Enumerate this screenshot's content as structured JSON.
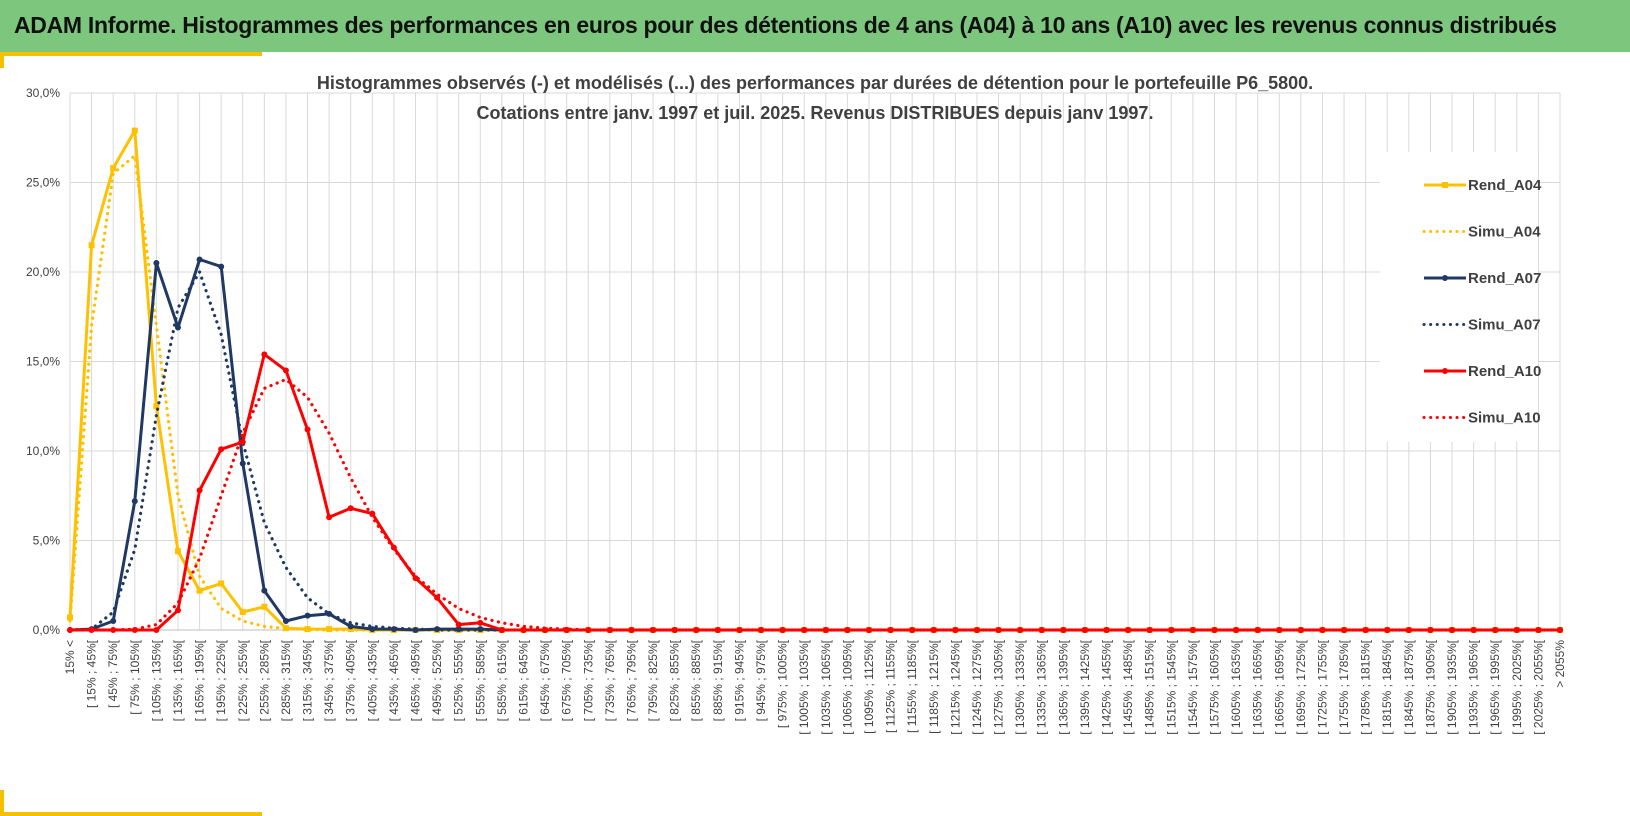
{
  "header": {
    "title": "ADAM Informe. Histogrammes des performances en euros pour des détentions de 4 ans (A04) à 10 ans (A10) avec les revenus connus distribués"
  },
  "colors": {
    "header_bg": "#7dc67e",
    "accent": "#f5c000",
    "yellow": "#ffc000",
    "navy": "#203864",
    "red": "#ff0000"
  },
  "chart_data": {
    "type": "line",
    "title": "Histogrammes observés (-) et modélisés (...) des performances par durées de détention pour le portefeuille P6_5800.",
    "subtitle": "Cotations entre janv. 1997 et juil. 2025. Revenus DISTRIBUES depuis janv 1997.",
    "ylim": [
      0,
      30
    ],
    "y_ticks": [
      "0,0%",
      "5,0%",
      "10,0%",
      "15,0%",
      "20,0%",
      "25,0%",
      "30,0%"
    ],
    "grid": true,
    "legend_position": "right",
    "categories": [
      "15% <",
      "[ 15% ; 45%[",
      "[ 45% ; 75%[",
      "[ 75% ; 105%[",
      "[ 105% ; 135%[",
      "[ 135% ; 165%[",
      "[ 165% ; 195%[",
      "[ 195% ; 225%[",
      "[ 225% ; 255%[",
      "[ 255% ; 285%[",
      "[ 285% ; 315%[",
      "[ 315% ; 345%[",
      "[ 345% ; 375%[",
      "[ 375% ; 405%[",
      "[ 405% ; 435%[",
      "[ 435% ; 465%[",
      "[ 465% ; 495%[",
      "[ 495% ; 525%[",
      "[ 525% ; 555%[",
      "[ 555% ; 585%[",
      "[ 585% ; 615%[",
      "[ 615% ; 645%[",
      "[ 645% ; 675%[",
      "[ 675% ; 705%[",
      "[ 705% ; 735%[",
      "[ 735% ; 765%[",
      "[ 765% ; 795%[",
      "[ 795% ; 825%[",
      "[ 825% ; 855%[",
      "[ 855% ; 885%[",
      "[ 885% ; 915%[",
      "[ 915% ; 945%[",
      "[ 945% ; 975%[",
      "[ 975% ; 1005%[",
      "[ 1005% ; 1035%[",
      "[ 1035% ; 1065%[",
      "[ 1065% ; 1095%[",
      "[ 1095% ; 1125%[",
      "[ 1125% ; 1155%[",
      "[ 1155% ; 1185%[",
      "[ 1185% ; 1215%[",
      "[ 1215% ; 1245%[",
      "[ 1245% ; 1275%[",
      "[ 1275% ; 1305%[",
      "[ 1305% ; 1335%[",
      "[ 1335% ; 1365%[",
      "[ 1365% ; 1395%[",
      "[ 1395% ; 1425%[",
      "[ 1425% ; 1455%[",
      "[ 1455% ; 1485%[",
      "[ 1485% ; 1515%[",
      "[ 1515% ; 1545%[",
      "[ 1545% ; 1575%[",
      "[ 1575% ; 1605%[",
      "[ 1605% ; 1635%[",
      "[ 1635% ; 1665%[",
      "[ 1665% ; 1695%[",
      "[ 1695% ; 1725%[",
      "[ 1725% ; 1755%[",
      "[ 1755% ; 1785%[",
      "[ 1785% ; 1815%[",
      "[ 1815% ; 1845%[",
      "[ 1845% ; 1875%[",
      "[ 1875% ; 1905%[",
      "[ 1905% ; 1935%[",
      "[ 1935% ; 1965%[",
      "[ 1965% ; 1995%[",
      "[ 1995% ; 2025%[",
      "[ 2025% ; 2055%[",
      "> 2055%"
    ],
    "series": [
      {
        "name": "Rend_A04",
        "color": "#ffc000",
        "style": "solid",
        "values": [
          0.7,
          21.5,
          25.8,
          27.9,
          12.5,
          4.4,
          2.2,
          2.6,
          1.0,
          1.3,
          0.1,
          0.05,
          0.05,
          0.05,
          0,
          0,
          0,
          0,
          0,
          0,
          0,
          0,
          0,
          0,
          0,
          0,
          0,
          0,
          0,
          0,
          0,
          0,
          0,
          0,
          0,
          0,
          0,
          0,
          0,
          0,
          0,
          0,
          0,
          0,
          0,
          0,
          0,
          0,
          0,
          0,
          0,
          0,
          0,
          0,
          0,
          0,
          0,
          0,
          0,
          0,
          0,
          0,
          0,
          0,
          0,
          0,
          0,
          0,
          0,
          0
        ]
      },
      {
        "name": "Simu_A04",
        "color": "#ffc000",
        "style": "dotted",
        "values": [
          0.5,
          17.0,
          25.5,
          26.5,
          17.0,
          7.5,
          3.0,
          1.2,
          0.5,
          0.2,
          0.08,
          0.03,
          0,
          0,
          0,
          0,
          0,
          0,
          0,
          0,
          0,
          0,
          0,
          0,
          0,
          0,
          0,
          0,
          0,
          0,
          0,
          0,
          0,
          0,
          0,
          0,
          0,
          0,
          0,
          0,
          0,
          0,
          0,
          0,
          0,
          0,
          0,
          0,
          0,
          0,
          0,
          0,
          0,
          0,
          0,
          0,
          0,
          0,
          0,
          0,
          0,
          0,
          0,
          0,
          0,
          0,
          0,
          0,
          0,
          0
        ]
      },
      {
        "name": "Rend_A07",
        "color": "#203864",
        "style": "solid",
        "values": [
          0,
          0.05,
          0.5,
          7.2,
          20.5,
          16.9,
          20.7,
          20.3,
          9.3,
          2.2,
          0.5,
          0.8,
          0.9,
          0.2,
          0.05,
          0.05,
          0,
          0.05,
          0.05,
          0.05,
          0,
          0,
          0,
          0,
          0,
          0,
          0,
          0,
          0,
          0,
          0,
          0,
          0,
          0,
          0,
          0,
          0,
          0,
          0,
          0,
          0,
          0,
          0,
          0,
          0,
          0,
          0,
          0,
          0,
          0,
          0,
          0,
          0,
          0,
          0,
          0,
          0,
          0,
          0,
          0,
          0,
          0,
          0,
          0,
          0,
          0,
          0,
          0,
          0,
          0
        ]
      },
      {
        "name": "Simu_A07",
        "color": "#203864",
        "style": "dotted",
        "values": [
          0,
          0.05,
          1.0,
          4.5,
          12.0,
          18.0,
          20.0,
          16.5,
          10.5,
          6.0,
          3.5,
          1.8,
          0.9,
          0.4,
          0.2,
          0.1,
          0.05,
          0,
          0,
          0,
          0,
          0,
          0,
          0,
          0,
          0,
          0,
          0,
          0,
          0,
          0,
          0,
          0,
          0,
          0,
          0,
          0,
          0,
          0,
          0,
          0,
          0,
          0,
          0,
          0,
          0,
          0,
          0,
          0,
          0,
          0,
          0,
          0,
          0,
          0,
          0,
          0,
          0,
          0,
          0,
          0,
          0,
          0,
          0,
          0,
          0,
          0,
          0,
          0,
          0
        ]
      },
      {
        "name": "Rend_A10",
        "color": "#ff0000",
        "style": "solid",
        "values": [
          0,
          0,
          0,
          0,
          0,
          1.1,
          7.8,
          10.1,
          10.5,
          15.4,
          14.5,
          11.2,
          6.3,
          6.8,
          6.5,
          4.6,
          2.9,
          1.8,
          0.3,
          0.4,
          0,
          0,
          0,
          0,
          0,
          0,
          0,
          0,
          0,
          0,
          0,
          0,
          0,
          0,
          0,
          0,
          0,
          0,
          0,
          0,
          0,
          0,
          0,
          0,
          0,
          0,
          0,
          0,
          0,
          0,
          0,
          0,
          0,
          0,
          0,
          0,
          0,
          0,
          0,
          0,
          0,
          0,
          0,
          0,
          0,
          0,
          0,
          0,
          0,
          0
        ]
      },
      {
        "name": "Simu_A10",
        "color": "#ff0000",
        "style": "dotted",
        "values": [
          0,
          0,
          0,
          0.05,
          0.3,
          1.5,
          4.0,
          7.5,
          11.0,
          13.5,
          14.0,
          13.0,
          11.0,
          8.5,
          6.3,
          4.5,
          3.0,
          2.0,
          1.2,
          0.7,
          0.4,
          0.2,
          0.1,
          0.05,
          0,
          0,
          0,
          0,
          0,
          0,
          0,
          0,
          0,
          0,
          0,
          0,
          0,
          0,
          0,
          0,
          0,
          0,
          0,
          0,
          0,
          0,
          0,
          0,
          0,
          0,
          0,
          0,
          0,
          0,
          0,
          0,
          0,
          0,
          0,
          0,
          0,
          0,
          0,
          0,
          0,
          0,
          0,
          0,
          0,
          0
        ]
      }
    ]
  }
}
